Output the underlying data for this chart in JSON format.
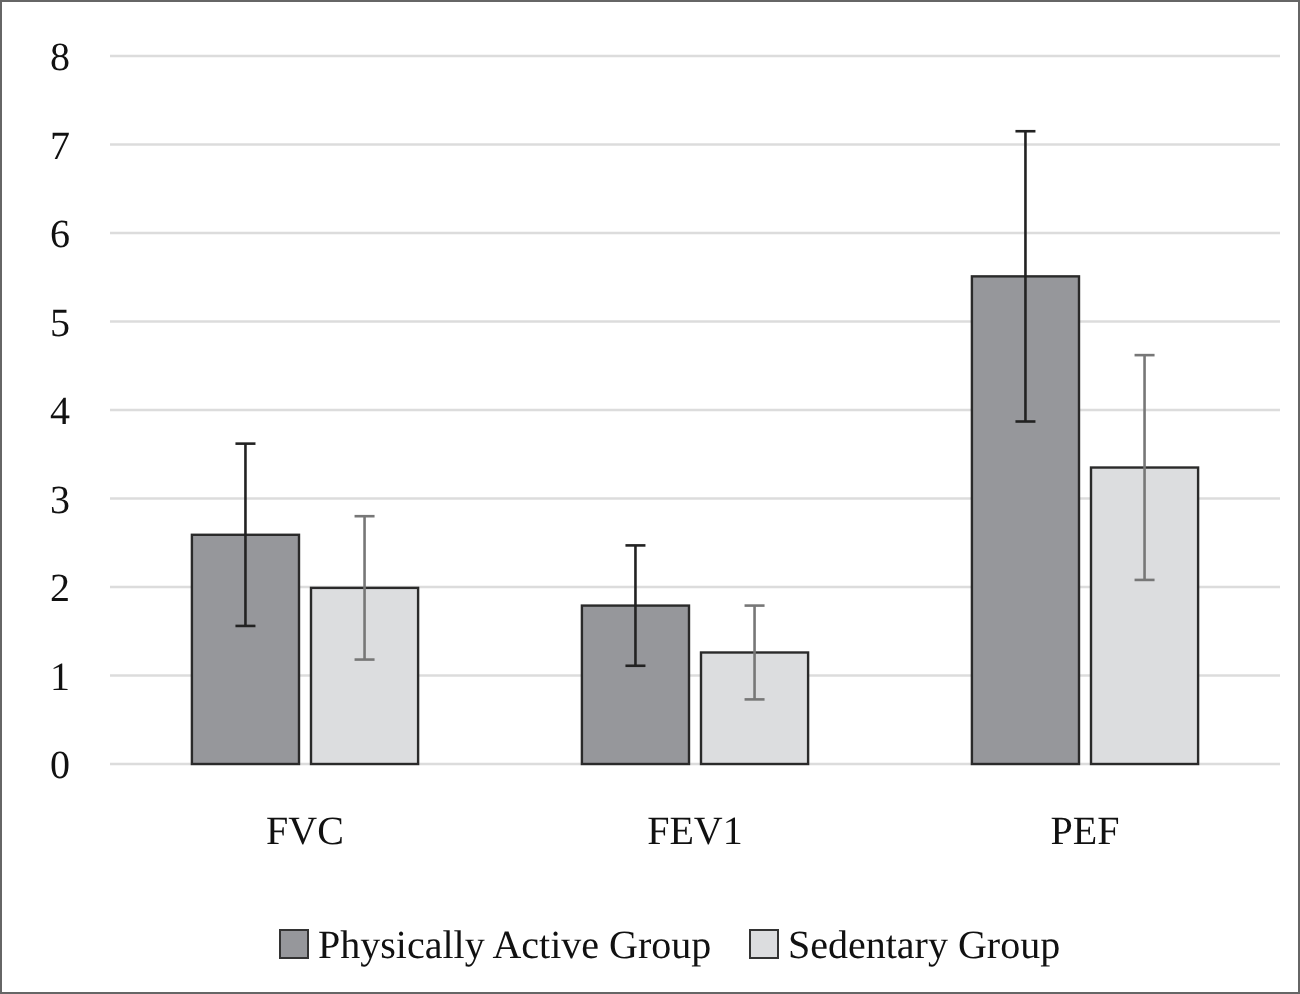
{
  "chart_data": {
    "type": "bar",
    "categories": [
      "FVC",
      "FEV1",
      "PEF"
    ],
    "series": [
      {
        "name": "Physically Active Group",
        "color": "#96979b",
        "values": [
          2.59,
          1.79,
          5.51
        ],
        "errors": [
          1.03,
          0.68,
          1.64
        ]
      },
      {
        "name": "Sedentary Group",
        "color": "#dcdddf",
        "values": [
          1.99,
          1.26,
          3.35
        ],
        "errors": [
          0.81,
          0.53,
          1.27
        ]
      }
    ],
    "ylim": [
      0,
      8
    ],
    "yticks": [
      0,
      1,
      2,
      3,
      4,
      5,
      6,
      7,
      8
    ],
    "grid": "y",
    "legend": "bottom"
  }
}
